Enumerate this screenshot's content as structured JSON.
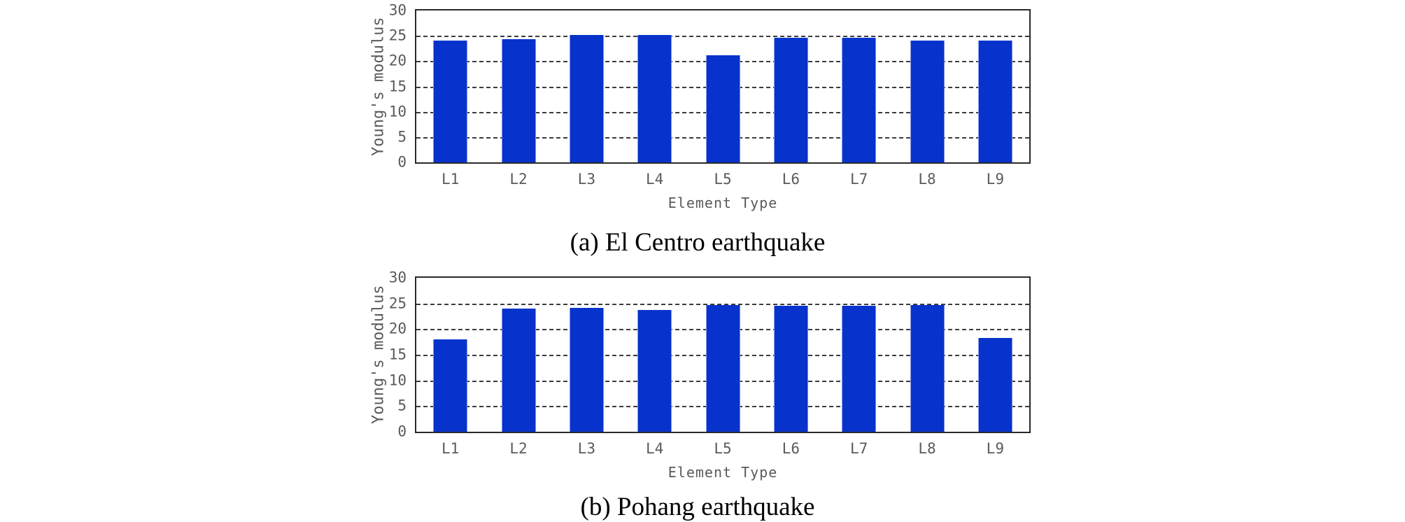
{
  "figure": {
    "background_color": "#ffffff"
  },
  "colors": {
    "bar": "#0733cc",
    "bar_edge_highlight": "#8195e6",
    "axis_border": "#2a2a2a",
    "gridline": "#3c3c3c",
    "axis_text": "#5a5a5a",
    "caption_text": "#000000"
  },
  "chart_data": [
    {
      "type": "bar",
      "title": "(a) El Centro earthquake",
      "xlabel": "Element Type",
      "ylabel": "Young's modulus",
      "categories": [
        "L1",
        "L2",
        "L3",
        "L4",
        "L5",
        "L6",
        "L7",
        "L8",
        "L9"
      ],
      "values": [
        24.1,
        24.3,
        25.1,
        25.1,
        21.1,
        24.6,
        24.6,
        24.1,
        24.1
      ],
      "ylim": [
        0,
        30
      ],
      "yticks": [
        0,
        5,
        10,
        15,
        20,
        25,
        30
      ],
      "grid": "horizontal-dashed",
      "legend": "none",
      "bar_color": "#0733cc"
    },
    {
      "type": "bar",
      "title": "(b) Pohang earthquake",
      "xlabel": "Element Type",
      "ylabel": "Young's modulus",
      "categories": [
        "L1",
        "L2",
        "L3",
        "L4",
        "L5",
        "L6",
        "L7",
        "L8",
        "L9"
      ],
      "values": [
        18.0,
        24.0,
        24.2,
        23.7,
        24.7,
        24.5,
        24.6,
        24.7,
        18.3
      ],
      "ylim": [
        0,
        30
      ],
      "yticks": [
        0,
        5,
        10,
        15,
        20,
        25,
        30
      ],
      "grid": "horizontal-dashed",
      "legend": "none",
      "bar_color": "#0733cc"
    }
  ]
}
